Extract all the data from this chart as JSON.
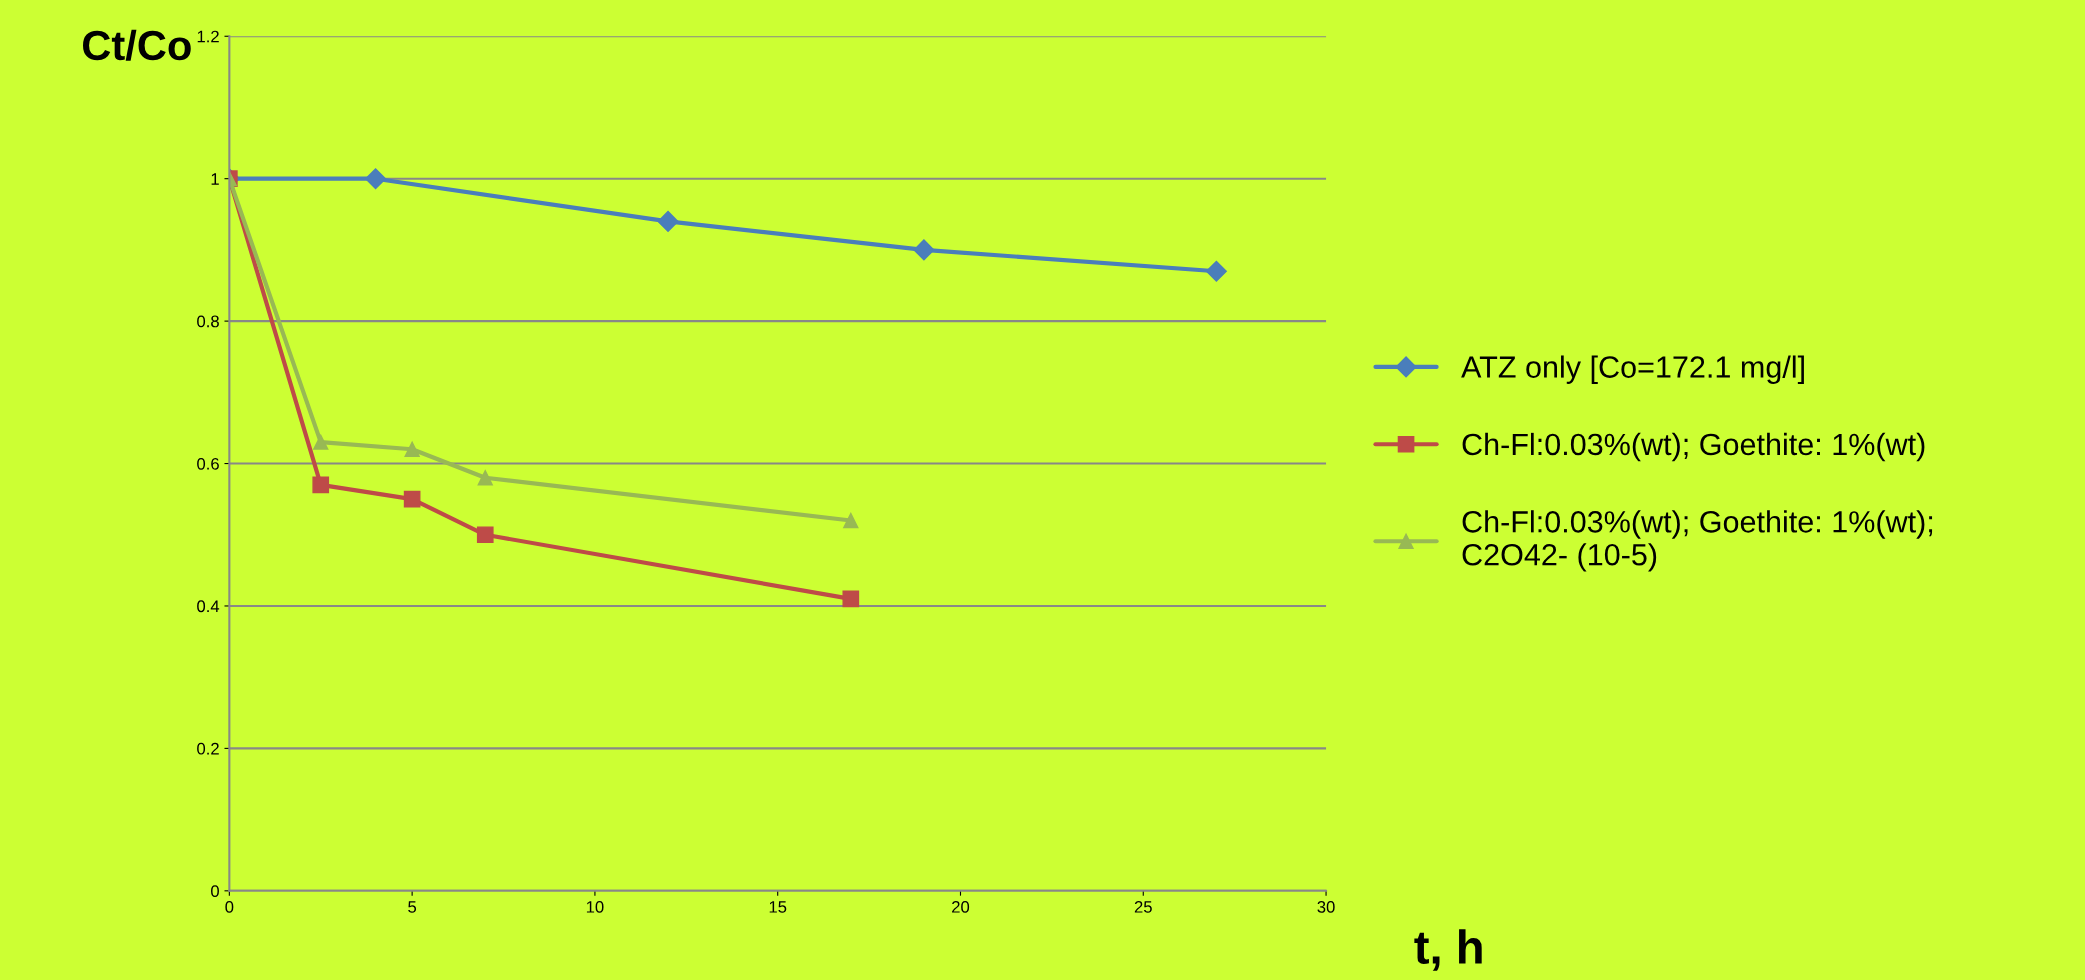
{
  "chart_data": {
    "type": "line",
    "xlabel": "t, h",
    "ylabel": "Ct/Co",
    "xlim": [
      0,
      30
    ],
    "xticks": [
      0,
      5,
      10,
      15,
      20,
      25,
      30
    ],
    "ylim": [
      0,
      1.2
    ],
    "yticks": [
      0,
      0.2,
      0.4,
      0.6,
      0.8,
      1,
      1.2
    ],
    "grid": "y",
    "legend": "right",
    "line_style": "solid",
    "series": [
      {
        "name": "ATZ only [Co=172.1 mg/l]",
        "color": "#4a7ebb",
        "marker": "diamond",
        "x": [
          0,
          4,
          12,
          19,
          27
        ],
        "values": [
          1,
          1,
          0.94,
          0.9,
          0.87
        ]
      },
      {
        "name": "Ch-Fl:0.03%(wt); Goethite: 1%(wt)",
        "color": "#be4b48",
        "marker": "square",
        "x": [
          0,
          2.5,
          5,
          7,
          17
        ],
        "values": [
          1,
          0.57,
          0.55,
          0.5,
          0.41
        ]
      },
      {
        "name": "Ch-Fl:0.03%(wt); Goethite: 1%(wt);\nC2O42- (10-5)",
        "color": "#98b954",
        "marker": "triangle",
        "x": [
          0,
          2.5,
          5,
          7,
          17
        ],
        "values": [
          1,
          0.63,
          0.62,
          0.58,
          0.52
        ]
      }
    ]
  }
}
